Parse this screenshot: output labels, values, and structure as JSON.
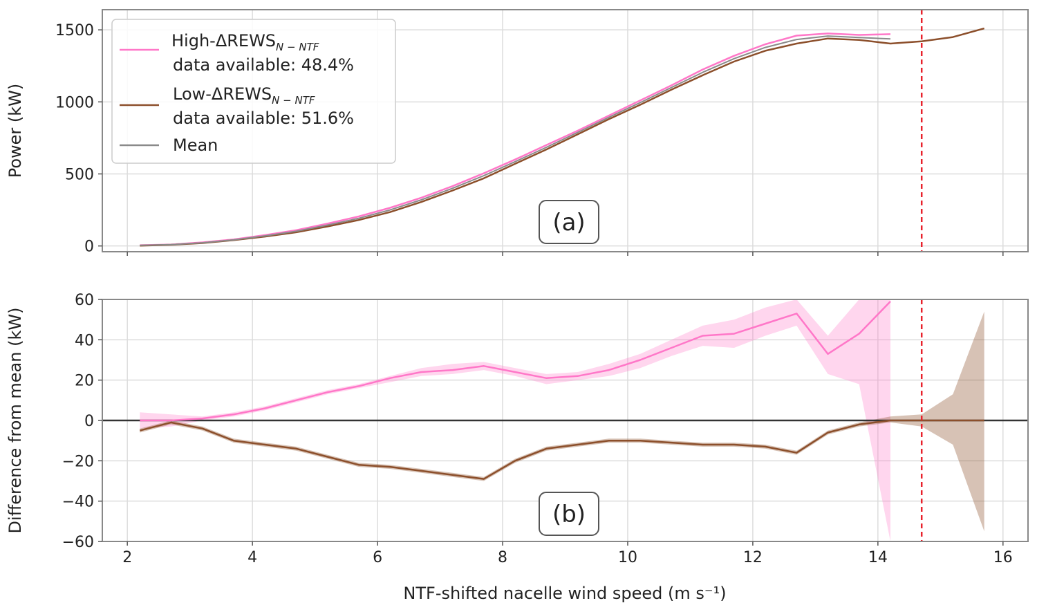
{
  "chart_data": [
    {
      "panel": "(a)",
      "type": "line",
      "title": "",
      "xlabel": "NTF-shifted nacelle wind speed (m s⁻¹)",
      "ylabel": "Power (kW)",
      "xlim": [
        1.6,
        16.4
      ],
      "ylim": [
        -40,
        1640
      ],
      "xticks": [
        2,
        4,
        6,
        8,
        10,
        12,
        14,
        16
      ],
      "yticks": [
        0,
        500,
        1000,
        1500
      ],
      "grid": true,
      "legend": "top-left",
      "vline_x": 14.7,
      "series": [
        {
          "name_main": "High-ΔREWS",
          "name_sub": "N − NTF",
          "name_line2": "data available: 48.4%",
          "color": "#ff77c8",
          "x": [
            2.2,
            2.7,
            3.2,
            3.7,
            4.2,
            4.7,
            5.2,
            5.7,
            6.2,
            6.7,
            7.2,
            7.7,
            8.2,
            8.7,
            9.2,
            9.7,
            10.2,
            10.7,
            11.2,
            11.7,
            12.2,
            12.7,
            13.2,
            13.7,
            14.2
          ],
          "y": [
            5,
            10,
            25,
            45,
            75,
            110,
            155,
            205,
            265,
            335,
            415,
            505,
            600,
            700,
            800,
            905,
            1010,
            1115,
            1225,
            1320,
            1400,
            1460,
            1475,
            1465,
            1470
          ]
        },
        {
          "name_main": "Low-ΔREWS",
          "name_sub": "N − NTF",
          "name_line2": "data available: 51.6%",
          "color": "#8c4f2b",
          "x": [
            2.2,
            2.7,
            3.2,
            3.7,
            4.2,
            4.7,
            5.2,
            5.7,
            6.2,
            6.7,
            7.2,
            7.7,
            8.2,
            8.7,
            9.2,
            9.7,
            10.2,
            10.7,
            11.2,
            11.7,
            12.2,
            12.7,
            13.2,
            13.7,
            14.2,
            14.7,
            15.2,
            15.7
          ],
          "y": [
            2,
            8,
            20,
            40,
            65,
            95,
            135,
            180,
            235,
            305,
            385,
            470,
            570,
            670,
            775,
            880,
            980,
            1085,
            1185,
            1280,
            1355,
            1405,
            1440,
            1430,
            1405,
            1420,
            1450,
            1510
          ]
        },
        {
          "name_main": "Mean",
          "name_sub": "",
          "name_line2": "",
          "color": "#8a8a8a",
          "x": [
            2.2,
            2.7,
            3.2,
            3.7,
            4.2,
            4.7,
            5.2,
            5.7,
            6.2,
            6.7,
            7.2,
            7.7,
            8.2,
            8.7,
            9.2,
            9.7,
            10.2,
            10.7,
            11.2,
            11.7,
            12.2,
            12.7,
            13.2,
            13.7,
            14.2
          ],
          "y": [
            4,
            9,
            22,
            42,
            70,
            102,
            145,
            192,
            250,
            320,
            400,
            488,
            585,
            685,
            788,
            893,
            995,
            1100,
            1205,
            1300,
            1378,
            1433,
            1457,
            1447,
            1437
          ]
        }
      ]
    },
    {
      "panel": "(b)",
      "type": "line",
      "title": "",
      "xlabel": "NTF-shifted nacelle wind speed (m s⁻¹)",
      "ylabel": "Difference from mean (kW)",
      "xlim": [
        1.6,
        16.4
      ],
      "ylim": [
        -60,
        60
      ],
      "xticks": [
        2,
        4,
        6,
        8,
        10,
        12,
        14,
        16
      ],
      "yticks": [
        -60,
        -40,
        -20,
        0,
        20,
        40,
        60
      ],
      "grid": true,
      "hline_y": 0,
      "vline_x": 14.7,
      "series": [
        {
          "name": "High",
          "color": "#ff77c8",
          "x": [
            2.2,
            2.7,
            3.2,
            3.7,
            4.2,
            4.7,
            5.2,
            5.7,
            6.2,
            6.7,
            7.2,
            7.7,
            8.2,
            8.7,
            9.2,
            9.7,
            10.2,
            10.7,
            11.2,
            11.7,
            12.2,
            12.7,
            13.2,
            13.7,
            14.2
          ],
          "y": [
            0,
            0,
            1,
            3,
            6,
            10,
            14,
            17,
            21,
            24,
            25,
            27,
            24,
            21,
            22,
            25,
            30,
            36,
            42,
            43,
            48,
            53,
            33,
            43,
            59
          ],
          "lower": [
            -4,
            -3,
            0,
            2,
            5,
            9,
            13,
            16,
            19,
            22,
            23,
            25,
            22,
            18,
            20,
            22,
            26,
            32,
            37,
            36,
            42,
            47,
            23,
            18,
            -60
          ],
          "upper": [
            4,
            3,
            2,
            4,
            7,
            11,
            15,
            18,
            22,
            26,
            28,
            29,
            26,
            23,
            24,
            28,
            33,
            40,
            47,
            50,
            56,
            60,
            42,
            60,
            60
          ]
        },
        {
          "name": "Low",
          "color": "#8c4f2b",
          "x": [
            2.2,
            2.7,
            3.2,
            3.7,
            4.2,
            4.7,
            5.2,
            5.7,
            6.2,
            6.7,
            7.2,
            7.7,
            8.2,
            8.7,
            9.2,
            9.7,
            10.2,
            10.7,
            11.2,
            11.7,
            12.2,
            12.7,
            13.2,
            13.7,
            14.2,
            14.7,
            15.2,
            15.7
          ],
          "y": [
            -5,
            -1,
            -4,
            -10,
            -12,
            -14,
            -18,
            -22,
            -23,
            -25,
            -27,
            -29,
            -20,
            -14,
            -12,
            -10,
            -10,
            -11,
            -12,
            -12,
            -13,
            -16,
            -6,
            -2,
            0,
            0,
            0,
            0
          ],
          "lower": [
            -6,
            -2,
            -5,
            -11,
            -13,
            -15,
            -19,
            -23,
            -24,
            -26,
            -28,
            -30,
            -21,
            -15,
            -13,
            -11,
            -11,
            -12,
            -13,
            -13,
            -14,
            -17,
            -7,
            -3,
            -1,
            -3,
            -12,
            -55
          ],
          "upper": [
            -4,
            0,
            -3,
            -9,
            -11,
            -13,
            -17,
            -21,
            -22,
            -24,
            -26,
            -28,
            -19,
            -13,
            -11,
            -9,
            -9,
            -10,
            -11,
            -11,
            -12,
            -15,
            -5,
            -1,
            2,
            3,
            13,
            54
          ]
        }
      ]
    }
  ]
}
